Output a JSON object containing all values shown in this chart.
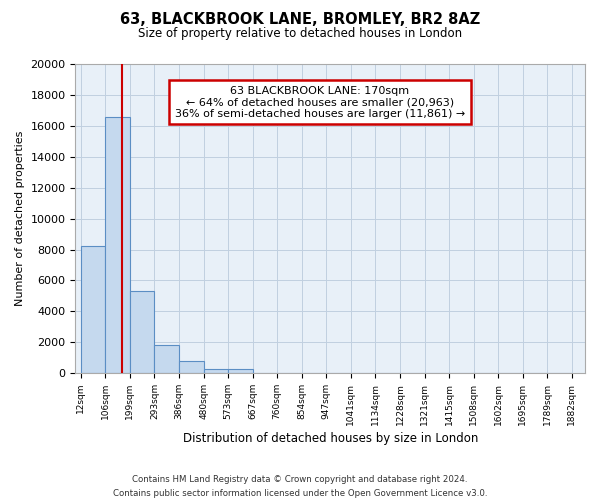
{
  "title": "63, BLACKBROOK LANE, BROMLEY, BR2 8AZ",
  "subtitle": "Size of property relative to detached houses in London",
  "xlabel": "Distribution of detached houses by size in London",
  "ylabel": "Number of detached properties",
  "bar_values": [
    8200,
    16600,
    5300,
    1800,
    800,
    300,
    270,
    0,
    0,
    0,
    0,
    0,
    0,
    0,
    0,
    0,
    0,
    0,
    0,
    0
  ],
  "bar_labels": [
    "12sqm",
    "106sqm",
    "199sqm",
    "293sqm",
    "386sqm",
    "480sqm",
    "573sqm",
    "667sqm",
    "760sqm",
    "854sqm",
    "947sqm",
    "1041sqm",
    "1134sqm",
    "1228sqm",
    "1321sqm",
    "1415sqm",
    "1508sqm",
    "1602sqm",
    "1695sqm",
    "1789sqm",
    "1882sqm"
  ],
  "bar_color": "#c5d9ee",
  "bar_edge_color": "#5b8ec4",
  "bar_edge_width": 0.8,
  "grid_color": "#c0cfe0",
  "background_color": "#ffffff",
  "plot_bg_color": "#e8f0f8",
  "annotation_text": "63 BLACKBROOK LANE: 170sqm\n← 64% of detached houses are smaller (20,963)\n36% of semi-detached houses are larger (11,861) →",
  "annotation_box_edge_color": "#cc0000",
  "vline_color": "#cc0000",
  "ylim": [
    0,
    20000
  ],
  "yticks": [
    0,
    2000,
    4000,
    6000,
    8000,
    10000,
    12000,
    14000,
    16000,
    18000,
    20000
  ],
  "footer_line1": "Contains HM Land Registry data © Crown copyright and database right 2024.",
  "footer_line2": "Contains public sector information licensed under the Open Government Licence v3.0.",
  "bin_edges": [
    12,
    106,
    199,
    293,
    386,
    480,
    573,
    667,
    760,
    854,
    947,
    1041,
    1134,
    1228,
    1321,
    1415,
    1508,
    1602,
    1695,
    1789,
    1882
  ],
  "property_size": 170
}
